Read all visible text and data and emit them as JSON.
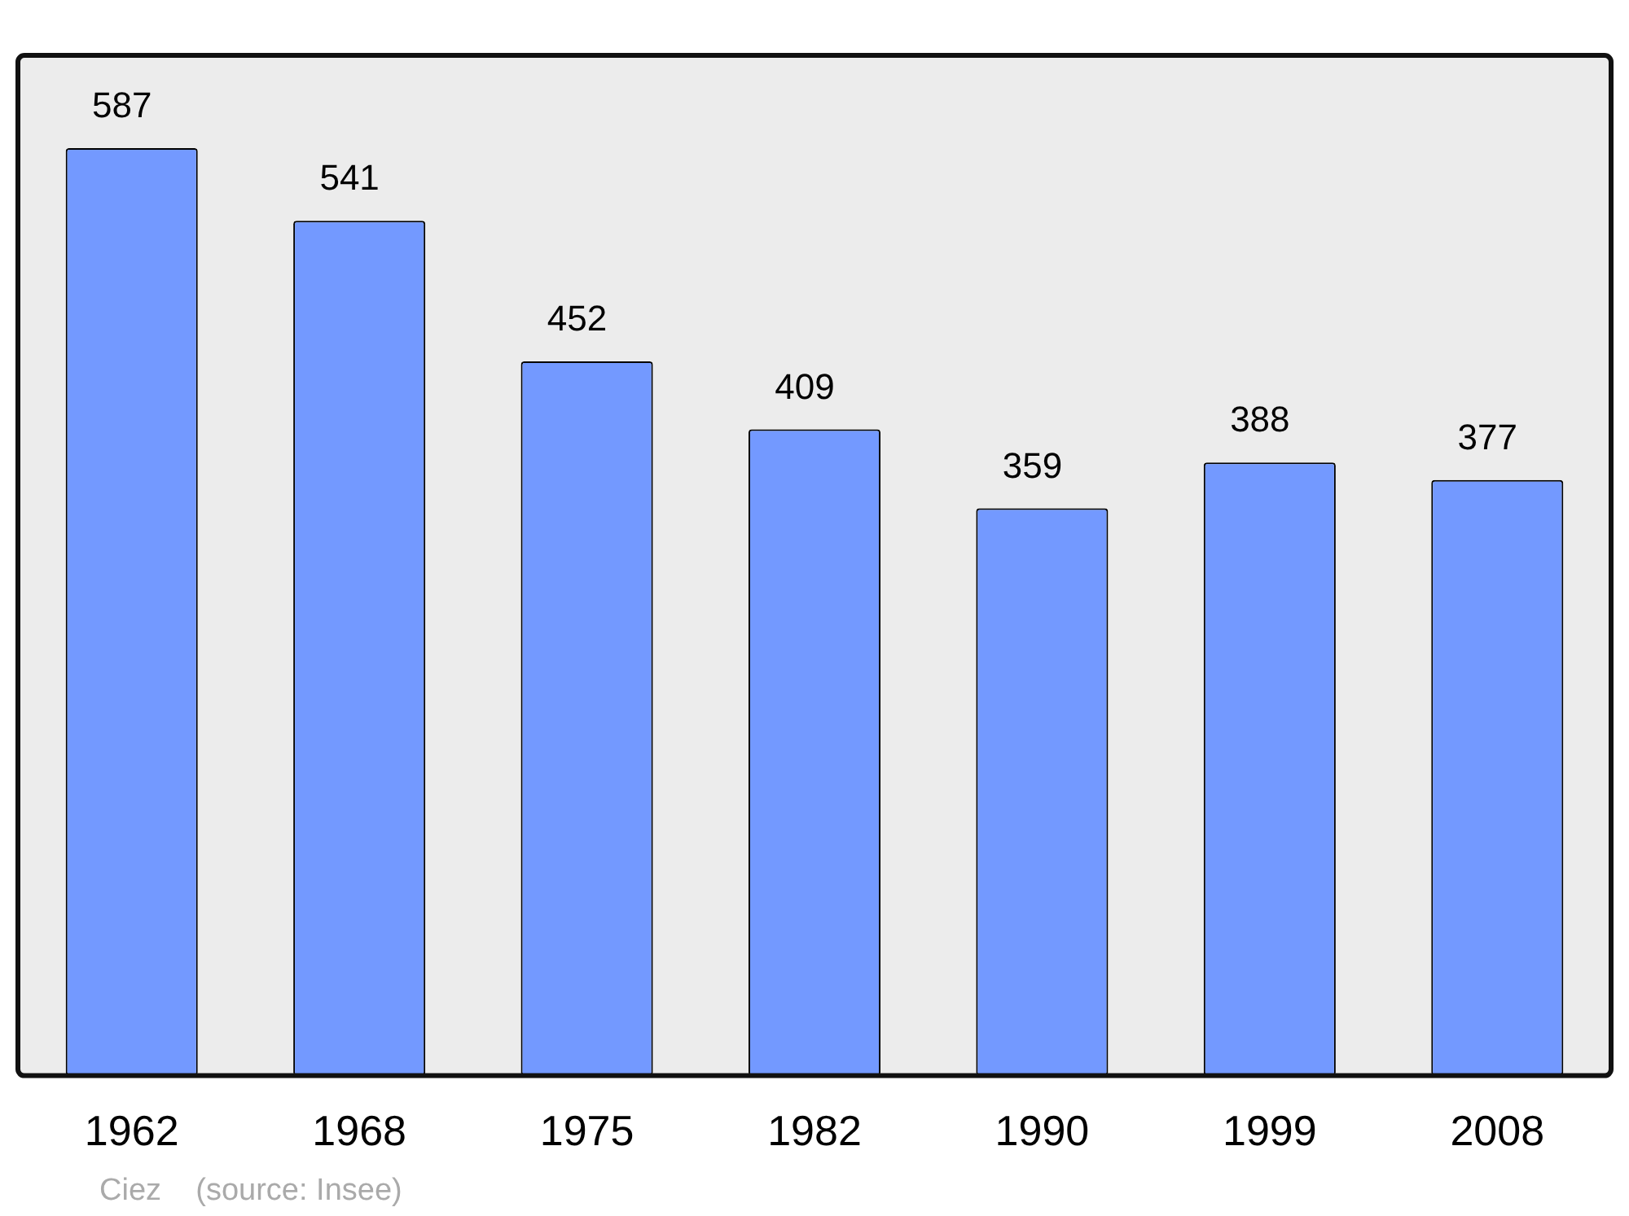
{
  "chart_data": {
    "type": "bar",
    "categories": [
      "1962",
      "1968",
      "1975",
      "1982",
      "1990",
      "1999",
      "2008"
    ],
    "values": [
      587,
      541,
      452,
      409,
      359,
      388,
      377
    ],
    "color": "#7399ff",
    "data_labels": true,
    "grid": false,
    "legend": false,
    "annotations": [
      "Ciez    (source: Insee)"
    ]
  }
}
